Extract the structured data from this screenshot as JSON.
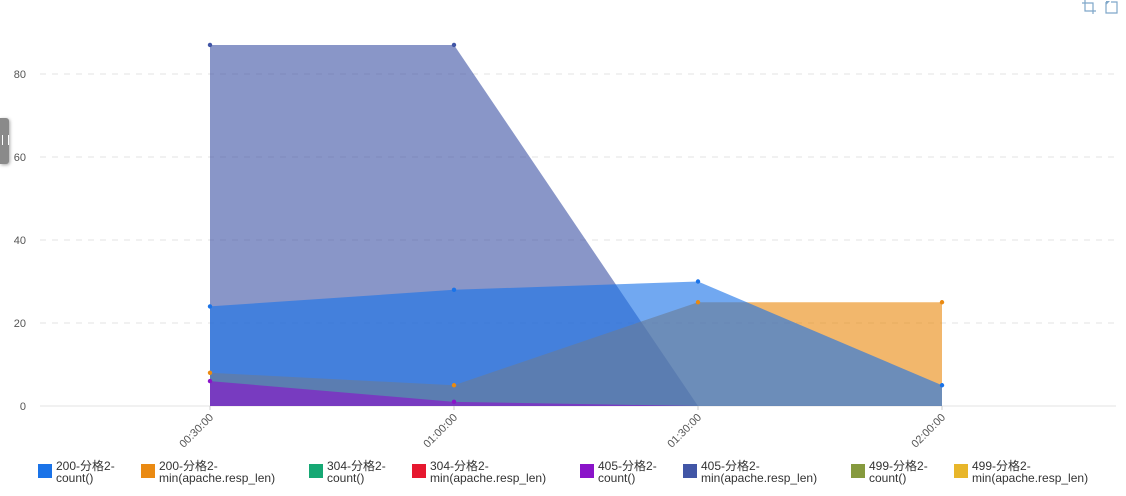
{
  "toolbar": {
    "icons": [
      "zoom-select-icon",
      "zoom-reset-icon"
    ]
  },
  "chart_data": {
    "type": "area",
    "title": "",
    "xlabel": "",
    "ylabel": "",
    "x": [
      "00:30:00",
      "01:00:00",
      "01:30:00",
      "02:00:00"
    ],
    "ylim": [
      0,
      90
    ],
    "yticks": [
      0,
      20,
      40,
      60,
      80
    ],
    "grid": true,
    "legend": "bottom",
    "series": [
      {
        "name": "200-分格2-\ncount()",
        "color": "#1a73e8",
        "values": [
          24,
          28,
          30,
          5
        ]
      },
      {
        "name": "200-分格2-\nmin(apache.resp_len)",
        "color": "#ea8a12",
        "values": [
          8,
          5,
          25,
          25
        ]
      },
      {
        "name": "304-分格2-\ncount()",
        "color": "#16a874",
        "values": [
          null,
          null,
          null,
          null
        ]
      },
      {
        "name": "304-分格2-\nmin(apache.resp_len)",
        "color": "#e6182f",
        "values": [
          null,
          null,
          null,
          null
        ]
      },
      {
        "name": "405-分格2-\ncount()",
        "color": "#8a14c9",
        "values": [
          6,
          1,
          0,
          null
        ]
      },
      {
        "name": "405-分格2-\nmin(apache.resp_len)",
        "color": "#4156a6",
        "values": [
          87,
          87,
          0,
          null
        ]
      },
      {
        "name": "499-分格2-\ncount()",
        "color": "#869a3e",
        "values": [
          null,
          null,
          null,
          null
        ]
      },
      {
        "name": "499-分格2-\nmin(apache.resp_len)",
        "color": "#e8b62a",
        "values": [
          null,
          null,
          null,
          null
        ]
      }
    ]
  }
}
